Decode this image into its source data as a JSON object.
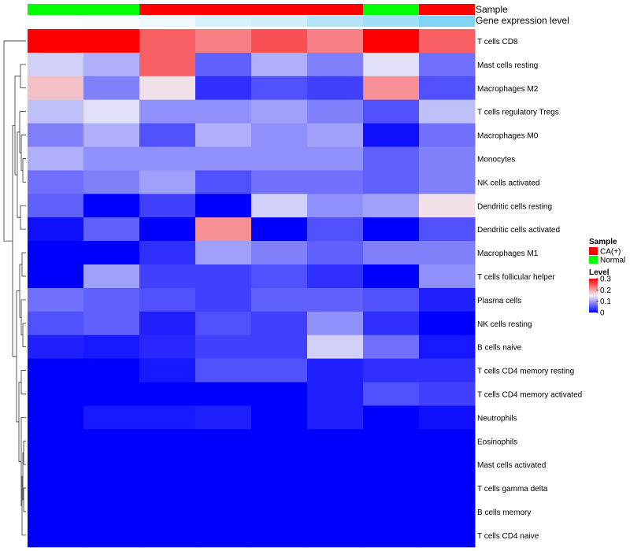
{
  "chart_data": {
    "type": "heatmap",
    "annotation_tracks": [
      {
        "label": "Sample",
        "values": [
          "Normal",
          "Normal",
          "CA(+)",
          "CA(+)",
          "CA(+)",
          "CA(+)",
          "Normal",
          "CA(+)"
        ],
        "colors": {
          "CA(+)": "#ff0000",
          "Normal": "#00ff00"
        }
      },
      {
        "label": "Gene expression level",
        "values": [
          0.02,
          0.04,
          0.1,
          0.25,
          0.28,
          0.45,
          0.55,
          0.75
        ],
        "color_low": "#ffffff",
        "color_high": "#56c5ef"
      }
    ],
    "rows": [
      "T cells CD8",
      "Mast cells resting",
      "Macrophages M2",
      "T cells regulatory  Tregs",
      "Macrophages M0",
      "Monocytes",
      "NK cells activated",
      "Dendritic cells resting",
      "Dendritic cells activated",
      "Macrophages M1",
      "T cells follicular helper",
      "Plasma cells",
      "NK cells resting",
      "B cells naive",
      "T cells CD4 memory resting",
      "T cells CD4 memory activated",
      "Neutrophils",
      "Eosinophils",
      "Mast cells activated",
      "T cells gamma delta",
      "B cells memory",
      "T cells CD4 naive"
    ],
    "values": [
      [
        0.3,
        0.3,
        0.24,
        0.22,
        0.25,
        0.22,
        0.3,
        0.24
      ],
      [
        0.13,
        0.11,
        0.24,
        0.06,
        0.11,
        0.08,
        0.14,
        0.07
      ],
      [
        0.18,
        0.08,
        0.16,
        0.03,
        0.05,
        0.04,
        0.21,
        0.05
      ],
      [
        0.12,
        0.14,
        0.09,
        0.09,
        0.1,
        0.08,
        0.05,
        0.12
      ],
      [
        0.08,
        0.11,
        0.05,
        0.11,
        0.09,
        0.1,
        0.01,
        0.07
      ],
      [
        0.11,
        0.09,
        0.09,
        0.09,
        0.09,
        0.09,
        0.06,
        0.08
      ],
      [
        0.07,
        0.08,
        0.1,
        0.05,
        0.07,
        0.07,
        0.06,
        0.08
      ],
      [
        0.06,
        0.0,
        0.04,
        0.0,
        0.13,
        0.09,
        0.1,
        0.16
      ],
      [
        0.01,
        0.06,
        0.0,
        0.21,
        0.0,
        0.05,
        0.0,
        0.05
      ],
      [
        0.0,
        0.0,
        0.03,
        0.1,
        0.08,
        0.06,
        0.08,
        0.08
      ],
      [
        0.0,
        0.1,
        0.04,
        0.04,
        0.05,
        0.03,
        0.0,
        0.09
      ],
      [
        0.07,
        0.06,
        0.05,
        0.04,
        0.06,
        0.06,
        0.05,
        0.02
      ],
      [
        0.05,
        0.06,
        0.02,
        0.05,
        0.04,
        0.09,
        0.03,
        0.0
      ],
      [
        0.02,
        0.015,
        0.025,
        0.04,
        0.04,
        0.13,
        0.07,
        0.015
      ],
      [
        0.0,
        0.0,
        0.015,
        0.05,
        0.05,
        0.02,
        0.03,
        0.03
      ],
      [
        0.0,
        0.0,
        0.0,
        0.0,
        0.0,
        0.02,
        0.05,
        0.04
      ],
      [
        0.0,
        0.015,
        0.015,
        0.02,
        0.0,
        0.02,
        0.0,
        0.01
      ],
      [
        0.0,
        0.0,
        0.0,
        0.0,
        0.0,
        0.0,
        0.0,
        0.0
      ],
      [
        0.0,
        0.0,
        0.0,
        0.0,
        0.0,
        0.0,
        0.0,
        0.0
      ],
      [
        0.0,
        0.0,
        0.0,
        0.0,
        0.0,
        0.0,
        0.0,
        0.0
      ],
      [
        0.0,
        0.0,
        0.0,
        0.0,
        0.0,
        0.0,
        0.0,
        0.0
      ],
      [
        0.0,
        0.0,
        0.0,
        0.0,
        0.0,
        0.0,
        0.0,
        0.0
      ]
    ],
    "color_scale": {
      "stops": [
        {
          "value": 0,
          "color": "#0000ff"
        },
        {
          "value": 0.15,
          "color": "#f0f0f8"
        },
        {
          "value": 0.3,
          "color": "#ff0000"
        }
      ]
    },
    "legend": {
      "placement": "right",
      "sample_title": "Sample",
      "sample_entries": [
        {
          "label": "CA(+)",
          "color": "#ff0000"
        },
        {
          "label": "Normal",
          "color": "#00ff00"
        }
      ],
      "level_title": "Level",
      "level_ticks": [
        "0.3",
        "0.2",
        "0.1",
        "0"
      ],
      "level_tick_values": [
        0.3,
        0.2,
        0.1,
        0
      ]
    },
    "dendrogram": "rows"
  }
}
